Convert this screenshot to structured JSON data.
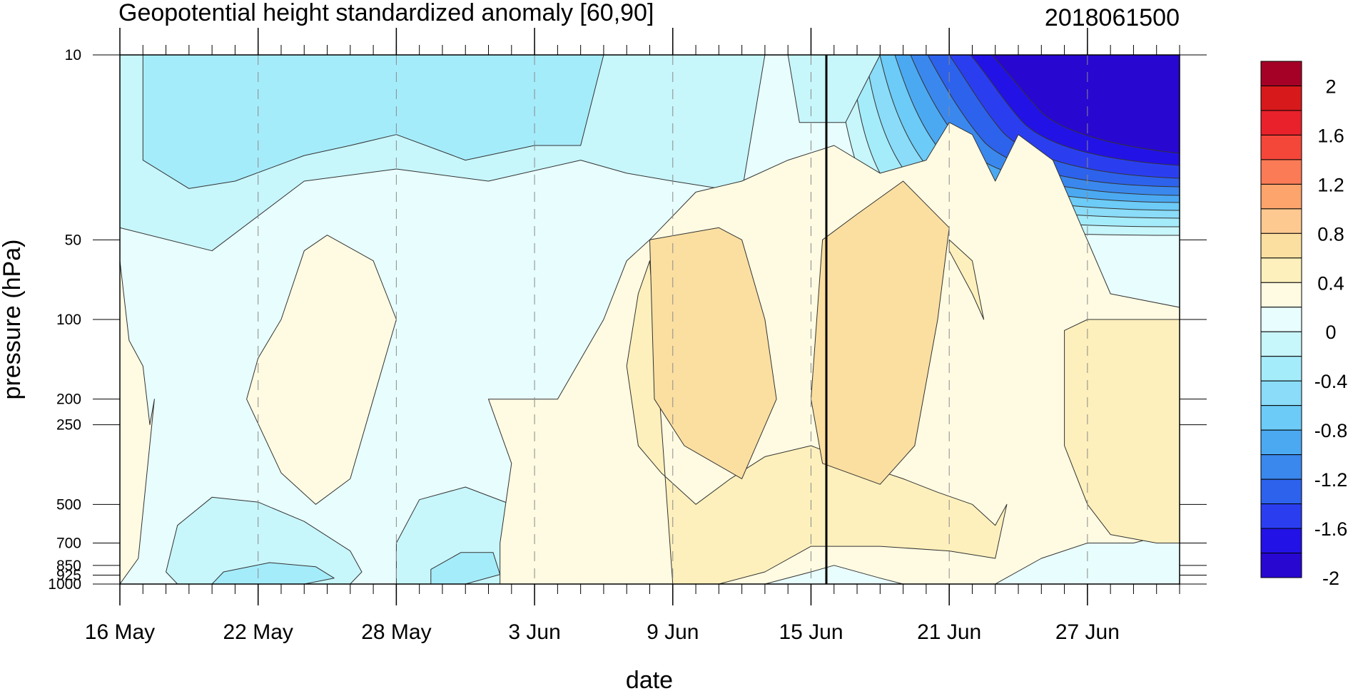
{
  "chart_data": {
    "type": "heatmap",
    "title": "Geopotential height standardized anomaly [60,90]",
    "subtitle": "2018061500",
    "xlabel": "date",
    "ylabel": "pressure (hPa)",
    "x_ticks": [
      "16 May",
      "22 May",
      "28 May",
      "3 Jun",
      "9 Jun",
      "15 Jun",
      "21 Jun",
      "27 Jun"
    ],
    "x_range": [
      "16 May",
      "1 Jul"
    ],
    "y_ticks": [
      "10",
      "50",
      "100",
      "200",
      "250",
      "500",
      "700",
      "850",
      "925",
      "1000"
    ],
    "y_scale": "log",
    "y_range": [
      1000,
      10
    ],
    "vertical_marker": "15 Jun",
    "grid": "dashed vertical lines at date ticks",
    "colorbar": {
      "labels": [
        "2",
        "1.6",
        "1.2",
        "0.8",
        "0.4",
        "0",
        "-0.4",
        "-0.8",
        "-1.2",
        "-1.6",
        "-2"
      ],
      "colors": [
        "#a50026",
        "#d7191c",
        "#e8212a",
        "#f4473a",
        "#fb7b56",
        "#fca46c",
        "#fdc991",
        "#fbdfa1",
        "#fdf0bc",
        "#fffbe2",
        "#e8fdfd",
        "#c7f6fb",
        "#a5ecfb",
        "#8adcf8",
        "#6ccbf7",
        "#4ba9f2",
        "#3a88ee",
        "#2d62ec",
        "#2a3ef0",
        "#2212e6",
        "#2807d1"
      ]
    },
    "regions": [
      {
        "level": "-0.4",
        "color": "#c7f6fb",
        "x_days": [
          0,
          7,
          10,
          14,
          18,
          22,
          26,
          28,
          27,
          24,
          22,
          20,
          16,
          12,
          8,
          4,
          0
        ],
        "y_hpa": [
          10,
          10,
          10,
          10,
          10,
          10,
          10,
          10,
          33,
          30,
          28,
          25,
          30,
          27,
          30,
          55,
          45
        ]
      },
      {
        "level": "-0.8",
        "color": "#a5ecfb",
        "x_days": [
          1,
          7,
          10,
          14,
          18,
          21,
          20,
          18,
          15,
          12,
          10,
          8,
          5,
          3,
          1
        ],
        "y_hpa": [
          10,
          10,
          10,
          10,
          10,
          10,
          22,
          22,
          25,
          20,
          22,
          24,
          30,
          32,
          25
        ]
      },
      {
        "level": "-0.4",
        "color": "#c7f6fb",
        "x_days": [
          2.5,
          4,
          6,
          8,
          10,
          10.5,
          10,
          8,
          6,
          4,
          2.5,
          2
        ],
        "y_hpa": [
          1000,
          1000,
          1000,
          1000,
          1000,
          900,
          750,
          580,
          490,
          470,
          600,
          900
        ]
      },
      {
        "level": "-0.8",
        "color": "#a5ecfb",
        "x_days": [
          4,
          6,
          8,
          9.3,
          8.5,
          6.5,
          4.5
        ],
        "y_hpa": [
          1000,
          1000,
          1000,
          950,
          860,
          830,
          900
        ]
      },
      {
        "level": "-0.4",
        "color": "#c7f6fb",
        "x_days": [
          12,
          15,
          18,
          21,
          22.3,
          21.5,
          19.5,
          17.5,
          15,
          13,
          12
        ],
        "y_hpa": [
          1000,
          1000,
          1000,
          1000,
          1000,
          750,
          570,
          520,
          430,
          480,
          700
        ]
      },
      {
        "level": "-0.8",
        "color": "#a5ecfb",
        "x_days": [
          13.5,
          15,
          16.5,
          16.2,
          14.8,
          13.5
        ],
        "y_hpa": [
          1000,
          1000,
          920,
          760,
          760,
          880
        ]
      },
      {
        "level": "-0.4",
        "color": "#c7f6fb",
        "x_days": [
          29,
          31,
          33,
          31.5,
          29.5
        ],
        "y_hpa": [
          10,
          10,
          10,
          18,
          18
        ]
      },
      {
        "level": "0",
        "color": "#fffbe2",
        "x_days": [
          0,
          0.8,
          1.5,
          1.3,
          1.0,
          0.4,
          0
        ],
        "y_hpa": [
          1000,
          800,
          200,
          250,
          150,
          120,
          60
        ]
      },
      {
        "level": "0",
        "color": "#fffbe2",
        "x_days": [
          5.5,
          7,
          8.5,
          10,
          11,
          12,
          11,
          9,
          8,
          7,
          6
        ],
        "y_hpa": [
          200,
          380,
          500,
          400,
          200,
          100,
          60,
          48,
          55,
          100,
          140
        ]
      },
      {
        "level": "0",
        "color": "#fffbe2",
        "x_days": [
          16,
          16,
          18,
          19,
          21,
          22,
          23,
          25,
          27,
          29,
          31,
          33,
          35,
          36,
          37,
          38,
          39,
          40.5,
          43,
          46,
          48,
          51,
          54,
          56,
          56,
          52,
          49,
          47,
          44,
          42,
          40,
          38,
          36,
          34,
          33,
          31,
          30,
          28,
          25,
          23,
          21,
          19,
          17.5,
          16.5,
          16.5,
          17
        ],
        "y_hpa": [
          200,
          200,
          200,
          200,
          100,
          60,
          50,
          33,
          30,
          25,
          22,
          28,
          25,
          18,
          20,
          30,
          20,
          25,
          80,
          90,
          90,
          100,
          100,
          100,
          700,
          650,
          620,
          600,
          700,
          700,
          800,
          1000,
          1000,
          1000,
          950,
          850,
          900,
          1000,
          1000,
          1000,
          1000,
          1000,
          1000,
          1000,
          700,
          350
        ]
      },
      {
        "level": "0.4",
        "color": "#fdf0bc",
        "x_days": [
          24,
          26,
          28,
          30,
          33,
          36,
          38,
          38.5,
          38,
          37,
          35.5,
          34,
          32,
          30,
          28,
          26.5,
          25,
          23.5,
          22.5,
          22,
          22.5,
          23
        ],
        "y_hpa": [
          1000,
          1000,
          900,
          720,
          720,
          750,
          800,
          500,
          600,
          500,
          450,
          400,
          350,
          300,
          330,
          400,
          500,
          380,
          300,
          150,
          80,
          60
        ]
      },
      {
        "level": "0.8",
        "color": "#fbdfa1",
        "x_days": [
          23,
          26,
          27,
          28,
          28.5,
          27,
          24.5,
          23.2
        ],
        "y_hpa": [
          50,
          45,
          50,
          100,
          200,
          400,
          300,
          200
        ]
      },
      {
        "level": "0.8",
        "color": "#fbdfa1",
        "x_days": [
          30.5,
          32,
          34,
          36,
          35.5,
          34.5,
          33,
          30.5,
          30
        ],
        "y_hpa": [
          50,
          40,
          30,
          45,
          100,
          300,
          420,
          350,
          200
        ]
      },
      {
        "level": "0.4",
        "color": "#fdf0bc",
        "x_days": [
          36,
          37,
          37.5,
          37,
          36
        ],
        "y_hpa": [
          50,
          60,
          100,
          80,
          55
        ]
      },
      {
        "level": "0.4",
        "color": "#fdf0bc",
        "x_days": [
          41,
          42,
          44,
          46,
          48,
          49,
          50,
          50,
          47,
          45,
          43,
          42,
          41
        ],
        "y_hpa": [
          110,
          100,
          100,
          100,
          110,
          200,
          300,
          600,
          700,
          700,
          650,
          500,
          300
        ]
      }
    ]
  }
}
